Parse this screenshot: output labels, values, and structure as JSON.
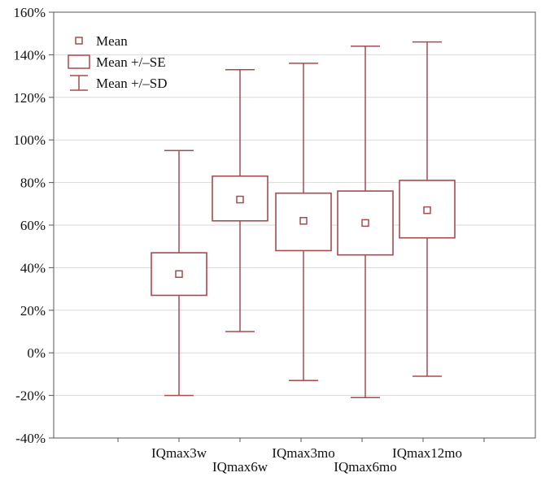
{
  "chart_data": {
    "type": "box",
    "title": "",
    "xlabel": "",
    "ylabel": "",
    "ylim": [
      -40,
      160
    ],
    "y_unit": "%",
    "y_ticks": [
      "160%",
      "140%",
      "120%",
      "100%",
      "80%",
      "60%",
      "40%",
      "20%",
      "0%",
      "-20%",
      "-40%"
    ],
    "grid": true,
    "legend_position": "top-left",
    "categories": [
      "IQmax3w",
      "IQmax6w",
      "IQmax3mo",
      "IQmax6mo",
      "IQmax12mo"
    ],
    "label_staggered": [
      false,
      true,
      false,
      true,
      false
    ],
    "series": [
      {
        "category": "IQmax3w",
        "mean": 37,
        "se_low": 27,
        "se_high": 47,
        "sd_low": -20,
        "sd_high": 95
      },
      {
        "category": "IQmax6w",
        "mean": 72,
        "se_low": 62,
        "se_high": 83,
        "sd_low": 10,
        "sd_high": 133
      },
      {
        "category": "IQmax3mo",
        "mean": 62,
        "se_low": 48,
        "se_high": 75,
        "sd_low": -13,
        "sd_high": 136
      },
      {
        "category": "IQmax6mo",
        "mean": 61,
        "se_low": 46,
        "se_high": 76,
        "sd_low": -21,
        "sd_high": 144
      },
      {
        "category": "IQmax12mo",
        "mean": 67,
        "se_low": 54,
        "se_high": 81,
        "sd_low": -11,
        "sd_high": 146
      }
    ],
    "legend": [
      {
        "symbol": "mean",
        "label": "Mean"
      },
      {
        "symbol": "se",
        "label": "Mean +/–SE"
      },
      {
        "symbol": "sd",
        "label": "Mean +/–SD"
      }
    ],
    "colors": {
      "series": "#a84a4e",
      "grid": "#d9d9d9",
      "axis": "#555555"
    }
  }
}
